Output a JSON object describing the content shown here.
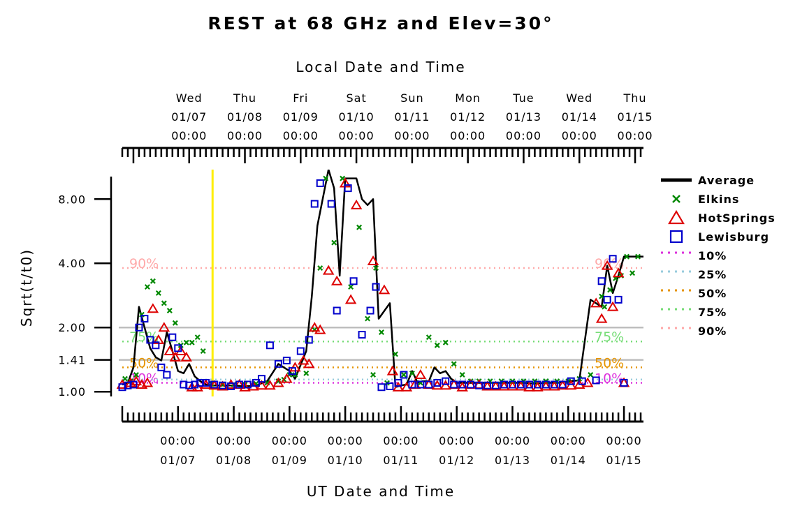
{
  "chart_data": {
    "type": "scatter",
    "title": "REST at 68 GHz and Elev=30°",
    "top_axis_label": "Local Date and Time",
    "xlabel": "UT Date and Time",
    "ylabel": "Sqrt(t/t0)",
    "y_scale": "log",
    "ylim": [
      0.95,
      11
    ],
    "y_ticks": [
      "1.00",
      "1.41",
      "2.00",
      "4.00",
      "8.00"
    ],
    "y_tick_values": [
      1.0,
      1.41,
      2.0,
      4.0,
      8.0
    ],
    "top_ticks": [
      {
        "day": "Wed",
        "date": "01/07",
        "time": "00:00",
        "x": 1.2
      },
      {
        "day": "Thu",
        "date": "01/08",
        "time": "00:00",
        "x": 2.2
      },
      {
        "day": "Fri",
        "date": "01/09",
        "time": "00:00",
        "x": 3.2
      },
      {
        "day": "Sat",
        "date": "01/10",
        "time": "00:00",
        "x": 4.2
      },
      {
        "day": "Sun",
        "date": "01/11",
        "time": "00:00",
        "x": 5.2
      },
      {
        "day": "Mon",
        "date": "01/12",
        "time": "00:00",
        "x": 6.2
      },
      {
        "day": "Tue",
        "date": "01/13",
        "time": "00:00",
        "x": 7.2
      },
      {
        "day": "Wed",
        "date": "01/14",
        "time": "00:00",
        "x": 8.2
      },
      {
        "day": "Thu",
        "date": "01/15",
        "time": "00:00",
        "x": 9.2
      }
    ],
    "bottom_ticks": [
      {
        "time": "00:00",
        "date": "01/07",
        "x": 1
      },
      {
        "time": "00:00",
        "date": "01/08",
        "x": 2
      },
      {
        "time": "00:00",
        "date": "01/09",
        "x": 3
      },
      {
        "time": "00:00",
        "date": "01/10",
        "x": 4
      },
      {
        "time": "00:00",
        "date": "01/11",
        "x": 5
      },
      {
        "time": "00:00",
        "date": "01/12",
        "x": 6
      },
      {
        "time": "00:00",
        "date": "01/13",
        "x": 7
      },
      {
        "time": "00:00",
        "date": "01/14",
        "x": 8
      },
      {
        "time": "00:00",
        "date": "01/15",
        "x": 9
      }
    ],
    "xlim": [
      0,
      9.35
    ],
    "current_time_marker": 1.62,
    "gray_reference_lines": [
      1.41,
      2.0
    ],
    "percentiles": [
      {
        "name": "10%",
        "value": 1.1,
        "color": "#dd33dd",
        "label": "10%"
      },
      {
        "name": "25%",
        "value": 1.14,
        "color": "#99ccdd",
        "label": ""
      },
      {
        "name": "50%",
        "value": 1.3,
        "color": "#e69500",
        "label": "50%"
      },
      {
        "name": "75%",
        "value": 1.72,
        "color": "#77dd77",
        "label": "75%"
      },
      {
        "name": "90%",
        "value": 3.8,
        "color": "#ffaaaa",
        "label": "90%"
      }
    ],
    "legend": [
      "Average",
      "Elkins",
      "HotSprings",
      "Lewisburg",
      "10%",
      "25%",
      "50%",
      "75%",
      "90%"
    ],
    "series": [
      {
        "name": "Average",
        "marker": "line",
        "color": "#000000",
        "x": [
          0,
          0.1,
          0.2,
          0.3,
          0.4,
          0.5,
          0.6,
          0.7,
          0.8,
          0.9,
          1.0,
          1.1,
          1.2,
          1.3,
          1.4,
          1.5,
          1.6,
          1.7,
          1.8,
          1.9,
          2.0,
          2.2,
          2.4,
          2.6,
          2.8,
          3.0,
          3.1,
          3.3,
          3.4,
          3.5,
          3.7,
          3.8,
          3.9,
          4.0,
          4.1,
          4.2,
          4.3,
          4.4,
          4.5,
          4.6,
          4.8,
          4.9,
          5.0,
          5.1,
          5.2,
          5.3,
          5.4,
          5.5,
          5.6,
          5.7,
          5.8,
          5.9,
          6.0,
          6.1,
          6.2,
          6.3,
          6.4,
          6.6,
          6.8,
          7.0,
          7.2,
          7.4,
          7.6,
          7.8,
          8.0,
          8.2,
          8.4,
          8.6,
          8.7,
          8.8,
          8.9,
          9.0,
          9.1,
          9.2,
          9.35
        ],
        "values": [
          1.08,
          1.1,
          1.3,
          2.5,
          2.0,
          1.6,
          1.45,
          1.4,
          1.9,
          1.55,
          1.25,
          1.22,
          1.35,
          1.18,
          1.12,
          1.08,
          1.07,
          1.07,
          1.07,
          1.07,
          1.07,
          1.06,
          1.07,
          1.12,
          1.35,
          1.25,
          1.15,
          1.55,
          2.8,
          6.0,
          11.0,
          9.0,
          3.5,
          10.0,
          10.0,
          10.0,
          8.0,
          7.5,
          8.0,
          2.2,
          2.6,
          1.05,
          1.07,
          1.08,
          1.25,
          1.1,
          1.12,
          1.12,
          1.3,
          1.22,
          1.25,
          1.15,
          1.1,
          1.1,
          1.1,
          1.1,
          1.1,
          1.1,
          1.1,
          1.1,
          1.1,
          1.09,
          1.1,
          1.1,
          1.12,
          1.13,
          2.7,
          2.5,
          3.9,
          2.9,
          3.5,
          4.3,
          4.3,
          4.3,
          4.3
        ]
      },
      {
        "name": "Elkins",
        "marker": "x",
        "color": "#008800",
        "x": [
          0.05,
          0.15,
          0.25,
          0.35,
          0.45,
          0.55,
          0.65,
          0.75,
          0.85,
          0.95,
          1.05,
          1.15,
          1.25,
          1.35,
          1.45,
          1.6,
          1.8,
          2.0,
          2.2,
          2.4,
          2.6,
          2.8,
          2.9,
          3.0,
          3.1,
          3.3,
          3.45,
          3.55,
          3.65,
          3.8,
          3.95,
          4.1,
          4.25,
          4.4,
          4.5,
          4.55,
          4.65,
          4.75,
          4.9,
          5.05,
          5.2,
          5.35,
          5.5,
          5.65,
          5.8,
          5.95,
          6.1,
          6.25,
          6.4,
          6.6,
          6.8,
          7.0,
          7.2,
          7.4,
          7.6,
          7.8,
          8.0,
          8.2,
          8.4,
          8.6,
          8.65,
          8.75,
          8.85,
          8.95,
          9.05,
          9.15,
          9.25
        ],
        "values": [
          1.15,
          1.12,
          1.2,
          2.3,
          3.1,
          3.3,
          2.9,
          2.6,
          2.4,
          2.1,
          1.65,
          1.7,
          1.7,
          1.8,
          1.55,
          1.09,
          1.08,
          1.08,
          1.08,
          1.09,
          1.1,
          1.12,
          1.14,
          1.2,
          1.2,
          1.22,
          1.95,
          3.8,
          10.0,
          5.0,
          10.0,
          3.1,
          5.9,
          2.2,
          1.2,
          3.8,
          1.9,
          1.1,
          1.5,
          1.2,
          1.22,
          1.1,
          1.8,
          1.65,
          1.7,
          1.35,
          1.2,
          1.12,
          1.12,
          1.12,
          1.12,
          1.12,
          1.12,
          1.12,
          1.12,
          1.12,
          1.12,
          1.15,
          1.2,
          2.8,
          2.5,
          3.0,
          3.4,
          3.5,
          4.3,
          3.6,
          4.3
        ]
      },
      {
        "name": "HotSprings",
        "marker": "triangle",
        "color": "#dd0000",
        "x": [
          0,
          0.15,
          0.25,
          0.35,
          0.45,
          0.55,
          0.65,
          0.75,
          0.85,
          0.95,
          1.05,
          1.15,
          1.25,
          1.35,
          1.5,
          1.65,
          1.8,
          1.95,
          2.1,
          2.2,
          2.35,
          2.5,
          2.65,
          2.8,
          2.95,
          3.1,
          3.25,
          3.35,
          3.45,
          3.55,
          3.7,
          3.85,
          4.0,
          4.1,
          4.2,
          4.5,
          4.7,
          4.85,
          4.95,
          5.1,
          5.25,
          5.35,
          5.5,
          5.65,
          5.8,
          5.95,
          6.1,
          6.25,
          6.4,
          6.55,
          6.7,
          6.85,
          7.0,
          7.15,
          7.3,
          7.45,
          7.6,
          7.75,
          7.9,
          8.05,
          8.2,
          8.35,
          8.5,
          8.6,
          8.7,
          8.8,
          8.9,
          9.0
        ],
        "values": [
          1.08,
          1.1,
          1.12,
          1.08,
          1.1,
          2.45,
          1.75,
          2.0,
          1.55,
          1.45,
          1.55,
          1.45,
          1.05,
          1.05,
          1.08,
          1.07,
          1.06,
          1.08,
          1.08,
          1.05,
          1.06,
          1.07,
          1.07,
          1.1,
          1.15,
          1.3,
          1.4,
          1.35,
          2.0,
          1.95,
          3.7,
          3.3,
          9.5,
          2.7,
          7.5,
          4.1,
          3.0,
          1.25,
          1.05,
          1.05,
          1.08,
          1.2,
          1.08,
          1.07,
          1.07,
          1.08,
          1.05,
          1.08,
          1.08,
          1.06,
          1.06,
          1.06,
          1.06,
          1.06,
          1.05,
          1.05,
          1.06,
          1.06,
          1.07,
          1.07,
          1.08,
          1.1,
          2.6,
          2.2,
          3.9,
          2.5,
          3.6,
          1.1
        ]
      },
      {
        "name": "Lewisburg",
        "marker": "square",
        "color": "#0000cc",
        "x": [
          0,
          0.1,
          0.2,
          0.3,
          0.4,
          0.5,
          0.6,
          0.7,
          0.8,
          0.9,
          1.0,
          1.1,
          1.2,
          1.3,
          1.4,
          1.5,
          1.65,
          1.8,
          1.95,
          2.1,
          2.25,
          2.4,
          2.5,
          2.65,
          2.8,
          2.95,
          3.05,
          3.2,
          3.35,
          3.45,
          3.55,
          3.75,
          3.85,
          4.05,
          4.15,
          4.3,
          4.45,
          4.55,
          4.65,
          4.8,
          4.95,
          5.05,
          5.2,
          5.35,
          5.5,
          5.65,
          5.8,
          5.95,
          6.1,
          6.25,
          6.4,
          6.55,
          6.7,
          6.85,
          7.0,
          7.15,
          7.3,
          7.45,
          7.6,
          7.75,
          7.9,
          8.05,
          8.25,
          8.5,
          8.6,
          8.7,
          8.8,
          8.9,
          9.0
        ],
        "values": [
          1.05,
          1.07,
          1.08,
          2.0,
          2.2,
          1.75,
          1.65,
          1.3,
          1.2,
          1.8,
          1.6,
          1.08,
          1.07,
          1.08,
          1.1,
          1.1,
          1.08,
          1.07,
          1.06,
          1.08,
          1.08,
          1.1,
          1.15,
          1.65,
          1.35,
          1.4,
          1.25,
          1.55,
          1.75,
          7.6,
          9.5,
          7.6,
          2.4,
          9.0,
          3.3,
          1.85,
          2.4,
          3.1,
          1.05,
          1.06,
          1.1,
          1.2,
          1.08,
          1.08,
          1.08,
          1.1,
          1.12,
          1.08,
          1.08,
          1.08,
          1.07,
          1.07,
          1.07,
          1.08,
          1.08,
          1.08,
          1.08,
          1.08,
          1.08,
          1.08,
          1.08,
          1.12,
          1.12,
          1.13,
          3.3,
          2.7,
          4.2,
          2.7,
          1.1
        ]
      }
    ]
  }
}
